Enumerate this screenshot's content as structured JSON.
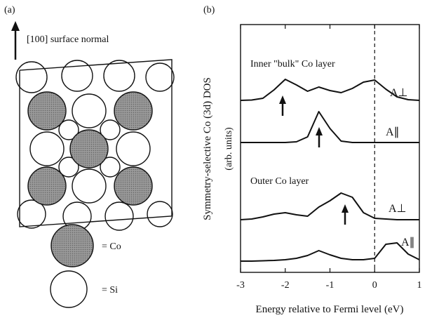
{
  "panel_a": {
    "label": "(a)",
    "arrow_label": "[100] surface normal",
    "legend": [
      "= Co",
      "= Si"
    ]
  },
  "chart_data": {
    "type": "line",
    "panel_label": "(b)",
    "y_label": "Symmetry-selective Co (3d) DOS",
    "y_sublabel": "(arb. units)",
    "x_label": "Energy relative to Fermi level (eV)",
    "annotations": [
      "Inner \"bulk\" Co layer",
      "Outer Co layer"
    ],
    "xlim": [
      -3,
      1
    ],
    "xticks": [
      -3,
      -2,
      -1,
      0,
      1
    ],
    "x": [
      -3,
      -2.75,
      -2.5,
      -2.25,
      -2,
      -1.75,
      -1.5,
      -1.25,
      -1,
      -0.75,
      -0.5,
      -0.25,
      0,
      0.25,
      0.5,
      0.75,
      1
    ],
    "series": [
      {
        "name": "A⊥",
        "color": "#111111",
        "values": [
          0,
          0.5,
          3,
          15,
          30,
          22,
          13,
          19,
          14,
          11,
          17,
          26,
          29,
          16,
          5,
          1,
          0
        ]
      },
      {
        "name": "A∥",
        "color": "#111111",
        "values": [
          0,
          0,
          0,
          0,
          0,
          1,
          8,
          44,
          20,
          2,
          0,
          0,
          0,
          0,
          0,
          0,
          0
        ]
      },
      {
        "name": "A⊥",
        "color": "#111111",
        "values": [
          0,
          1,
          4,
          8,
          10,
          7,
          5,
          18,
          27,
          38,
          32,
          10,
          2,
          1,
          0,
          0,
          0
        ]
      },
      {
        "name": "A∥",
        "color": "#111111",
        "values": [
          0,
          0,
          0.5,
          1,
          2,
          4,
          8,
          15,
          9,
          4,
          2,
          2,
          4,
          24,
          26,
          10,
          2
        ]
      }
    ]
  }
}
